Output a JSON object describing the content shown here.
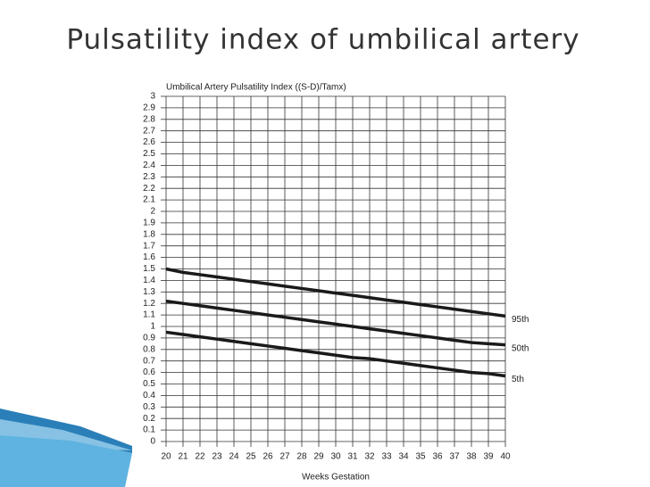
{
  "title": "Pulsatility index of umbilical artery",
  "chart_data": {
    "type": "line",
    "title": "Umbilical Artery Pulsatility Index ((S-D)/Tamx)",
    "x_label": "Weeks Gestation",
    "x": [
      20,
      21,
      22,
      23,
      24,
      25,
      26,
      27,
      28,
      29,
      30,
      31,
      32,
      33,
      34,
      35,
      36,
      37,
      38,
      39,
      40
    ],
    "xlim": [
      20,
      40
    ],
    "xticks": [
      20,
      21,
      22,
      23,
      24,
      25,
      26,
      27,
      28,
      29,
      30,
      31,
      32,
      33,
      34,
      35,
      36,
      37,
      38,
      39,
      40
    ],
    "ylim": [
      0,
      3
    ],
    "yticks": [
      0,
      0.1,
      0.2,
      0.3,
      0.4,
      0.5,
      0.6,
      0.7,
      0.8,
      0.9,
      1,
      1.1,
      1.2,
      1.3,
      1.4,
      1.5,
      1.6,
      1.7,
      1.8,
      1.9,
      2,
      2.1,
      2.2,
      2.3,
      2.4,
      2.5,
      2.6,
      2.7,
      2.8,
      2.9,
      3
    ],
    "grid": true,
    "series": [
      {
        "name": "95th",
        "color": "#1a1a1a",
        "values": [
          1.5,
          1.47,
          1.45,
          1.43,
          1.41,
          1.39,
          1.37,
          1.35,
          1.33,
          1.31,
          1.29,
          1.27,
          1.25,
          1.23,
          1.21,
          1.19,
          1.17,
          1.15,
          1.13,
          1.11,
          1.09
        ]
      },
      {
        "name": "50th",
        "color": "#1a1a1a",
        "values": [
          1.22,
          1.2,
          1.18,
          1.16,
          1.14,
          1.12,
          1.1,
          1.08,
          1.06,
          1.04,
          1.02,
          1.0,
          0.98,
          0.96,
          0.94,
          0.92,
          0.9,
          0.88,
          0.86,
          0.85,
          0.84
        ]
      },
      {
        "name": "5th",
        "color": "#1a1a1a",
        "values": [
          0.95,
          0.93,
          0.91,
          0.89,
          0.87,
          0.85,
          0.83,
          0.81,
          0.79,
          0.77,
          0.75,
          0.73,
          0.72,
          0.7,
          0.68,
          0.66,
          0.64,
          0.62,
          0.6,
          0.59,
          0.57
        ]
      }
    ]
  }
}
